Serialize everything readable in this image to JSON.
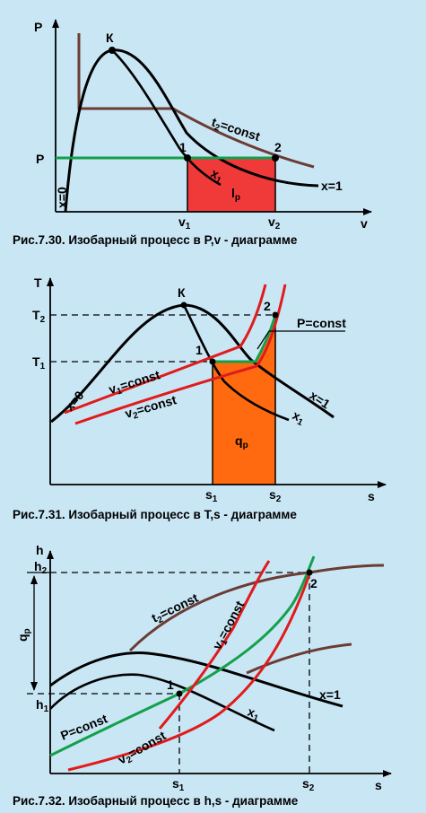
{
  "colors": {
    "background": "#c9e6f5",
    "axis": "#000000",
    "saturation_curve": "#000000",
    "isotherm": "#6b3c34",
    "isobar": "#14a04a",
    "isochore": "#e01b1b",
    "work_area": "#f03a3a",
    "heat_area": "#ff6a10"
  },
  "fig1": {
    "caption": "Рис.7.30. Изобарный процесс в P,v - диаграмме",
    "axis_y": "P",
    "axis_x": "v",
    "critical_point": "К",
    "pressure_label": "P",
    "point_1": "1",
    "point_2": "2",
    "v1_main": "v",
    "v1_sub": "1",
    "v2_main": "v",
    "v2_sub": "2",
    "isotherm_main": "t",
    "isotherm_sub": "2",
    "isotherm_rest": "=const",
    "x1_main": "x",
    "x1_sub": "1",
    "x0": "x=0",
    "x_one": "x=1",
    "work_main": "l",
    "work_sub": "p"
  },
  "fig2": {
    "caption": "Рис.7.31. Изобарный процесс в T,s - диаграмме",
    "axis_y": "T",
    "axis_x": "s",
    "critical_point": "К",
    "t1_main": "T",
    "t1_sub": "1",
    "t2_main": "T",
    "t2_sub": "2",
    "point_1": "1",
    "point_2": "2",
    "p_const": "P=const",
    "v1_main": "v",
    "v1_sub": "1",
    "v1_rest": "=const",
    "v2_main": "v",
    "v2_sub": "2",
    "v2_rest": "=const",
    "x0": "x=0",
    "x_one": "x=1",
    "x1_main": "x",
    "x1_sub": "1",
    "heat_main": "q",
    "heat_sub": "p",
    "s1_main": "s",
    "s1_sub": "1",
    "s2_main": "s",
    "s2_sub": "2"
  },
  "fig3": {
    "caption": "Рис.7.32. Изобарный процесс в h,s - диаграмме",
    "axis_y": "h",
    "axis_x": "s",
    "h1_main": "h",
    "h1_sub": "1",
    "h2_main": "h",
    "h2_sub": "2",
    "heat_main": "q",
    "heat_sub": "p",
    "isotherm_main": "t",
    "isotherm_sub": "2",
    "isotherm_rest": "=const",
    "v1_main": "v",
    "v1_sub": "1",
    "v1_rest": "=const",
    "v2_main": "v",
    "v2_sub": "2",
    "v2_rest": "=const",
    "p_const": "P=const",
    "point_1": "1",
    "point_2": "2",
    "x_one": "x=1",
    "x1_main": "x",
    "x1_sub": "1",
    "s1_main": "s",
    "s1_sub": "1",
    "s2_main": "s",
    "s2_sub": "2"
  }
}
